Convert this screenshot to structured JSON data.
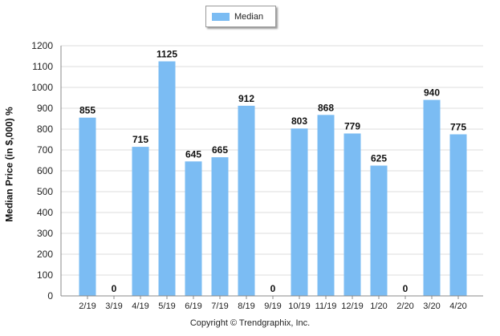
{
  "colors": {
    "bar": "#7bbcf3",
    "grid": "#dedede",
    "axis": "#888888"
  },
  "legend": {
    "label": "Median"
  },
  "footer": {
    "copyright": "Copyright © Trendgraphix, Inc."
  },
  "chart_data": {
    "type": "bar",
    "title": "",
    "xlabel": "",
    "ylabel": "Median Price (in $,000) %",
    "ylim": [
      0,
      1200
    ],
    "yticks": [
      0,
      100,
      200,
      300,
      400,
      500,
      600,
      700,
      800,
      900,
      1000,
      1100,
      1200
    ],
    "grid": true,
    "legend_position": "top-center",
    "categories": [
      "2/19",
      "3/19",
      "4/19",
      "5/19",
      "6/19",
      "7/19",
      "8/19",
      "9/19",
      "10/19",
      "11/19",
      "12/19",
      "1/20",
      "2/20",
      "3/20",
      "4/20"
    ],
    "series": [
      {
        "name": "Median",
        "values": [
          855,
          0,
          715,
          1125,
          645,
          665,
          912,
          0,
          803,
          868,
          779,
          625,
          0,
          940,
          775
        ]
      }
    ]
  }
}
